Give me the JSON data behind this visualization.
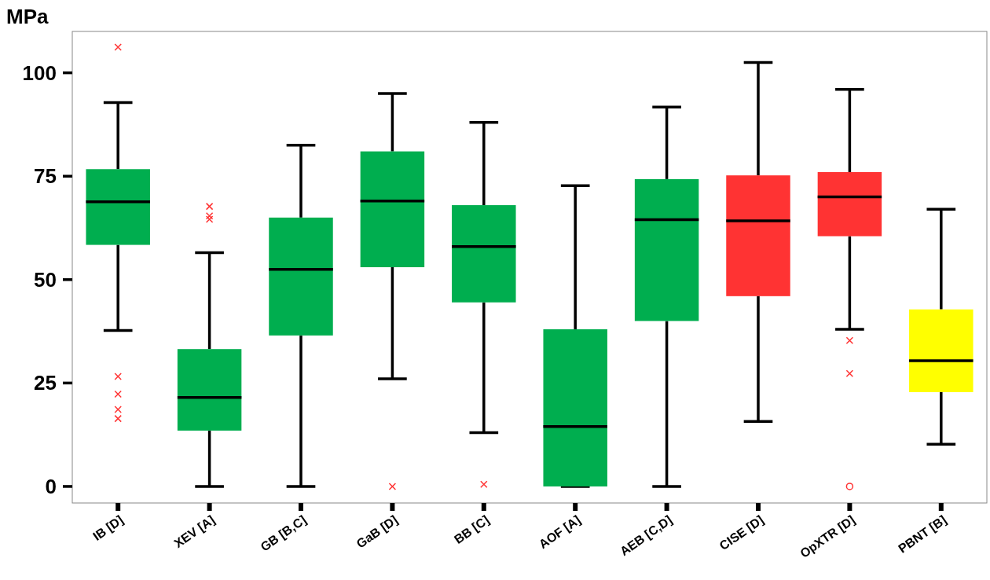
{
  "chart_data": {
    "type": "box",
    "ylabel": "MPa",
    "categories": [
      "IB [D]",
      "XEV [A]",
      "GB [B,C]",
      "GaB [D]",
      "BB [C]",
      "AOF [A]",
      "AEB [C,D]",
      "CISE [D]",
      "OpXTR [D]",
      "PBNT [B]"
    ],
    "colors": [
      "#00ae4f",
      "#00ae4f",
      "#00ae4f",
      "#00ae4f",
      "#00ae4f",
      "#00ae4f",
      "#00ae4f",
      "#ff3333",
      "#ff3333",
      "#ffff00"
    ],
    "color": "#ff3333",
    "boxes": [
      {
        "low": 37.7,
        "q1": 58.4,
        "median": 68.8,
        "q3": 76.7,
        "high": 92.8,
        "outliers": [
          106.2,
          26.6,
          22.3,
          18.6,
          16.4
        ]
      },
      {
        "low": 0,
        "q1": 13.5,
        "median": 21.5,
        "q3": 33.2,
        "high": 56.5,
        "outliers": [
          67.7,
          65.4,
          64.6
        ]
      },
      {
        "low": 0,
        "q1": 36.5,
        "median": 52.5,
        "q3": 65,
        "high": 82.5
      },
      {
        "low": 26,
        "q1": 53,
        "median": 69,
        "q3": 81,
        "high": 95,
        "outliers": [
          0
        ]
      },
      {
        "low": 13,
        "q1": 44.5,
        "median": 58,
        "q3": 68,
        "high": 88,
        "outliers": [
          0.5
        ]
      },
      {
        "low": 0,
        "q1": 0,
        "median": 14.5,
        "q3": 38,
        "high": 72.7
      },
      {
        "low": 0,
        "q1": 40,
        "median": 64.5,
        "q3": 74.3,
        "high": 91.7
      },
      {
        "low": 15.7,
        "q1": 46,
        "median": 64.2,
        "q3": 75.2,
        "high": 102.5
      },
      {
        "low": 38,
        "q1": 60.5,
        "median": 70,
        "q3": 76,
        "high": 96,
        "outliers": [
          35.3,
          27.3
        ]
      },
      {
        "low": 10.2,
        "q1": 22.8,
        "median": 30.4,
        "q3": 42.8,
        "high": 67
      }
    ],
    "series": [
      {
        "type": "scatter",
        "x": [
          "OpXTR [D]"
        ],
        "values": [
          0
        ],
        "color": "#ff3333",
        "marker": "circle"
      }
    ],
    "marker": "cross",
    "ylim": [
      -4,
      110
    ],
    "yticks": [
      0,
      25,
      50,
      75,
      100
    ]
  }
}
